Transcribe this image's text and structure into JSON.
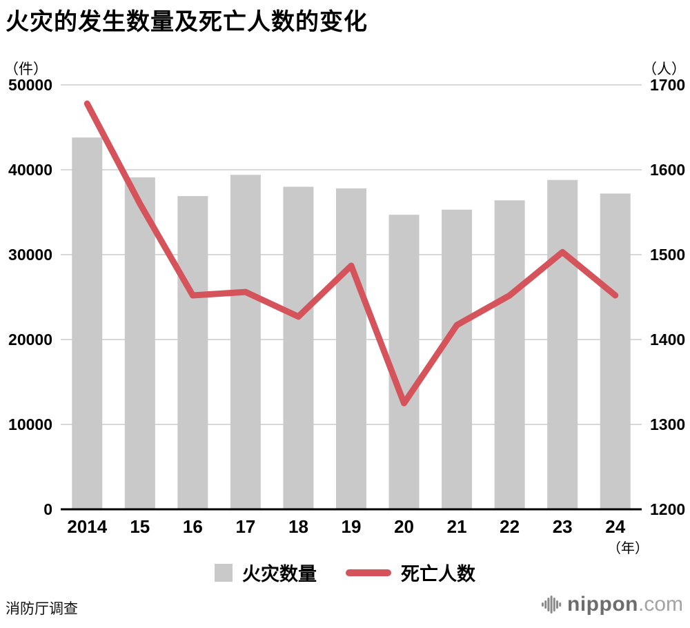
{
  "title": "火灾的发生数量及死亡人数的变化",
  "left_unit": "（件）",
  "right_unit": "（人）",
  "legend": {
    "bars": "火灾数量",
    "line": "死亡人数"
  },
  "source": "消防厅调查",
  "logo": {
    "name": "nippon",
    "tld": ".com"
  },
  "colors": {
    "bar": "#c9c9c9",
    "line": "#d5535a",
    "grid": "#cccccc",
    "axis": "#000000",
    "text": "#000000",
    "logo_icon": "#8a8a8a"
  },
  "chart_data": {
    "type": "combo",
    "title": "火灾的发生数量及死亡人数的变化",
    "categories": [
      "2014",
      "15",
      "16",
      "17",
      "18",
      "19",
      "20",
      "21",
      "22",
      "23",
      "24"
    ],
    "series": [
      {
        "name": "火灾数量",
        "type": "bar",
        "axis": "left",
        "values": [
          43800,
          39100,
          36900,
          39400,
          38000,
          37800,
          34700,
          35300,
          36400,
          38800,
          37200
        ]
      },
      {
        "name": "死亡人数",
        "type": "line",
        "axis": "right",
        "values": [
          1678,
          1560,
          1452,
          1456,
          1427,
          1487,
          1325,
          1417,
          1452,
          1503,
          1452
        ]
      }
    ],
    "left_axis": {
      "label": "（件）",
      "ticks": [
        0,
        10000,
        20000,
        30000,
        40000,
        50000
      ],
      "range": [
        0,
        50000
      ]
    },
    "right_axis": {
      "label": "（人）",
      "ticks": [
        1200,
        1300,
        1400,
        1500,
        1600,
        1700
      ],
      "range": [
        1200,
        1700
      ]
    },
    "x_axis": {
      "label": "（年）"
    },
    "grid": true,
    "legend_position": "bottom"
  }
}
